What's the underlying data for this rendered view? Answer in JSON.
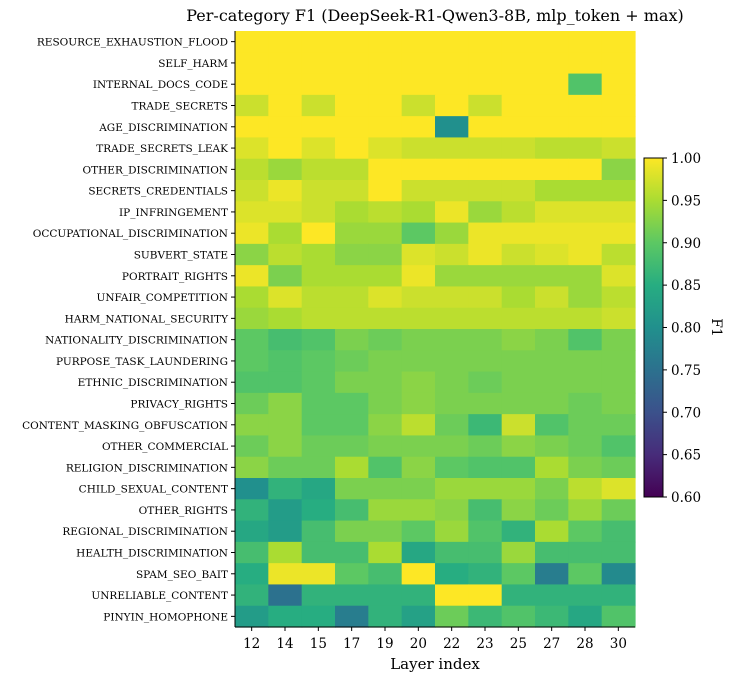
{
  "chart_data": {
    "type": "heatmap",
    "title": "Per-category F1 (DeepSeek-R1-Qwen3-8B, mlp_token + max)",
    "xlabel": "Layer index",
    "ylabel": "",
    "x": [
      "12",
      "14",
      "15",
      "17",
      "19",
      "20",
      "22",
      "23",
      "25",
      "27",
      "28",
      "30"
    ],
    "y": [
      "RESOURCE_EXHAUSTION_FLOOD",
      "SELF_HARM",
      "INTERNAL_DOCS_CODE",
      "TRADE_SECRETS",
      "AGE_DISCRIMINATION",
      "TRADE_SECRETS_LEAK",
      "OTHER_DISCRIMINATION",
      "SECRETS_CREDENTIALS",
      "IP_INFRINGEMENT",
      "OCCUPATIONAL_DISCRIMINATION",
      "SUBVERT_STATE",
      "PORTRAIT_RIGHTS",
      "UNFAIR_COMPETITION",
      "HARM_NATIONAL_SECURITY",
      "NATIONALITY_DISCRIMINATION",
      "PURPOSE_TASK_LAUNDERING",
      "ETHNIC_DISCRIMINATION",
      "PRIVACY_RIGHTS",
      "CONTENT_MASKING_OBFUSCATION",
      "OTHER_COMMERCIAL",
      "RELIGION_DISCRIMINATION",
      "CHILD_SEXUAL_CONTENT",
      "OTHER_RIGHTS",
      "REGIONAL_DISCRIMINATION",
      "HEALTH_DISCRIMINATION",
      "SPAM_SEO_BAIT",
      "UNRELIABLE_CONTENT",
      "PINYIN_HOMOPHONE"
    ],
    "values": [
      [
        1.0,
        1.0,
        1.0,
        1.0,
        1.0,
        1.0,
        1.0,
        1.0,
        1.0,
        1.0,
        1.0,
        1.0
      ],
      [
        1.0,
        1.0,
        1.0,
        1.0,
        1.0,
        1.0,
        1.0,
        1.0,
        1.0,
        1.0,
        1.0,
        1.0
      ],
      [
        1.0,
        1.0,
        1.0,
        1.0,
        1.0,
        1.0,
        1.0,
        1.0,
        1.0,
        1.0,
        0.89,
        1.0
      ],
      [
        0.97,
        1.0,
        0.97,
        1.0,
        1.0,
        0.97,
        1.0,
        0.97,
        1.0,
        1.0,
        1.0,
        1.0
      ],
      [
        1.0,
        1.0,
        1.0,
        1.0,
        1.0,
        1.0,
        0.8,
        1.0,
        1.0,
        1.0,
        1.0,
        1.0
      ],
      [
        0.98,
        1.0,
        0.98,
        1.0,
        0.98,
        0.97,
        0.97,
        0.97,
        0.97,
        0.96,
        0.96,
        0.97
      ],
      [
        0.96,
        0.94,
        0.96,
        0.96,
        1.0,
        1.0,
        1.0,
        1.0,
        1.0,
        1.0,
        1.0,
        0.93
      ],
      [
        0.97,
        0.99,
        0.97,
        0.97,
        1.0,
        0.97,
        0.97,
        0.97,
        0.97,
        0.95,
        0.95,
        0.95
      ],
      [
        0.98,
        0.98,
        0.97,
        0.95,
        0.96,
        0.95,
        0.99,
        0.94,
        0.96,
        0.98,
        0.98,
        0.98
      ],
      [
        0.99,
        0.95,
        1.0,
        0.94,
        0.94,
        0.9,
        0.94,
        0.99,
        0.99,
        0.99,
        0.99,
        0.99
      ],
      [
        0.93,
        0.96,
        0.95,
        0.93,
        0.93,
        0.98,
        0.97,
        0.99,
        0.97,
        0.98,
        0.99,
        0.96
      ],
      [
        0.99,
        0.92,
        0.95,
        0.95,
        0.95,
        0.99,
        0.94,
        0.94,
        0.94,
        0.94,
        0.94,
        0.98
      ],
      [
        0.95,
        0.98,
        0.96,
        0.96,
        0.98,
        0.97,
        0.97,
        0.97,
        0.95,
        0.97,
        0.94,
        0.96
      ],
      [
        0.94,
        0.95,
        0.96,
        0.96,
        0.96,
        0.96,
        0.96,
        0.96,
        0.96,
        0.96,
        0.96,
        0.97
      ],
      [
        0.9,
        0.88,
        0.89,
        0.92,
        0.91,
        0.92,
        0.92,
        0.92,
        0.93,
        0.92,
        0.89,
        0.92
      ],
      [
        0.9,
        0.89,
        0.9,
        0.91,
        0.92,
        0.92,
        0.92,
        0.92,
        0.92,
        0.92,
        0.92,
        0.92
      ],
      [
        0.89,
        0.89,
        0.9,
        0.92,
        0.92,
        0.93,
        0.92,
        0.91,
        0.92,
        0.92,
        0.92,
        0.92
      ],
      [
        0.91,
        0.93,
        0.9,
        0.9,
        0.92,
        0.93,
        0.92,
        0.92,
        0.92,
        0.92,
        0.91,
        0.92
      ],
      [
        0.93,
        0.93,
        0.9,
        0.9,
        0.93,
        0.96,
        0.91,
        0.87,
        0.97,
        0.89,
        0.91,
        0.91
      ],
      [
        0.91,
        0.93,
        0.91,
        0.91,
        0.92,
        0.92,
        0.92,
        0.91,
        0.93,
        0.92,
        0.91,
        0.89
      ],
      [
        0.93,
        0.91,
        0.91,
        0.95,
        0.89,
        0.93,
        0.9,
        0.89,
        0.89,
        0.95,
        0.92,
        0.91
      ],
      [
        0.8,
        0.86,
        0.84,
        0.92,
        0.92,
        0.92,
        0.94,
        0.94,
        0.94,
        0.92,
        0.96,
        0.98
      ],
      [
        0.86,
        0.82,
        0.85,
        0.88,
        0.94,
        0.94,
        0.93,
        0.88,
        0.93,
        0.91,
        0.94,
        0.91
      ],
      [
        0.84,
        0.82,
        0.88,
        0.92,
        0.92,
        0.9,
        0.94,
        0.89,
        0.86,
        0.95,
        0.9,
        0.88
      ],
      [
        0.88,
        0.95,
        0.88,
        0.88,
        0.95,
        0.84,
        0.88,
        0.88,
        0.94,
        0.88,
        0.88,
        0.88
      ],
      [
        0.85,
        0.99,
        0.99,
        0.9,
        0.88,
        1.0,
        0.85,
        0.86,
        0.9,
        0.77,
        0.9,
        0.79
      ],
      [
        0.86,
        0.75,
        0.86,
        0.86,
        0.86,
        0.86,
        1.0,
        1.0,
        0.86,
        0.86,
        0.86,
        0.86
      ],
      [
        0.82,
        0.85,
        0.85,
        0.77,
        0.86,
        0.83,
        0.91,
        0.87,
        0.89,
        0.87,
        0.84,
        0.89
      ]
    ],
    "colormap": "viridis",
    "vmin": 0.6,
    "vmax": 1.0,
    "colorbar": {
      "label": "F1",
      "ticks": [
        "0.60",
        "0.65",
        "0.70",
        "0.75",
        "0.80",
        "0.85",
        "0.90",
        "0.95",
        "1.00"
      ],
      "tick_values": [
        0.6,
        0.65,
        0.7,
        0.75,
        0.8,
        0.85,
        0.9,
        0.95,
        1.0
      ]
    }
  }
}
